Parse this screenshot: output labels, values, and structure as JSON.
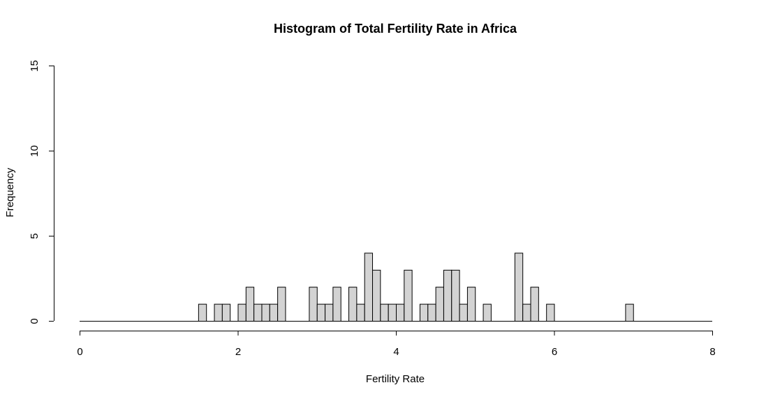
{
  "chart_data": {
    "type": "bar",
    "title": "Histogram of Total Fertility Rate in Africa",
    "xlabel": "Fertility Rate",
    "ylabel": "Frequency",
    "xlim": [
      0,
      8
    ],
    "ylim": [
      0,
      15
    ],
    "x_ticks": [
      "0",
      "2",
      "4",
      "6",
      "8"
    ],
    "y_ticks": [
      "0",
      "5",
      "10",
      "15"
    ],
    "bin_width": 0.1,
    "bar_color": "#d3d3d3",
    "grid": false,
    "bins": [
      {
        "start": 1.5,
        "count": 1
      },
      {
        "start": 1.7,
        "count": 1
      },
      {
        "start": 1.8,
        "count": 1
      },
      {
        "start": 2.0,
        "count": 1
      },
      {
        "start": 2.1,
        "count": 2
      },
      {
        "start": 2.2,
        "count": 1
      },
      {
        "start": 2.3,
        "count": 1
      },
      {
        "start": 2.4,
        "count": 1
      },
      {
        "start": 2.5,
        "count": 2
      },
      {
        "start": 2.9,
        "count": 2
      },
      {
        "start": 3.0,
        "count": 1
      },
      {
        "start": 3.1,
        "count": 1
      },
      {
        "start": 3.2,
        "count": 2
      },
      {
        "start": 3.4,
        "count": 2
      },
      {
        "start": 3.5,
        "count": 1
      },
      {
        "start": 3.6,
        "count": 4
      },
      {
        "start": 3.7,
        "count": 3
      },
      {
        "start": 3.8,
        "count": 1
      },
      {
        "start": 3.9,
        "count": 1
      },
      {
        "start": 4.0,
        "count": 1
      },
      {
        "start": 4.1,
        "count": 3
      },
      {
        "start": 4.3,
        "count": 1
      },
      {
        "start": 4.4,
        "count": 1
      },
      {
        "start": 4.5,
        "count": 2
      },
      {
        "start": 4.6,
        "count": 3
      },
      {
        "start": 4.7,
        "count": 3
      },
      {
        "start": 4.8,
        "count": 1
      },
      {
        "start": 4.9,
        "count": 2
      },
      {
        "start": 5.1,
        "count": 1
      },
      {
        "start": 5.5,
        "count": 4
      },
      {
        "start": 5.6,
        "count": 1
      },
      {
        "start": 5.7,
        "count": 2
      },
      {
        "start": 5.9,
        "count": 1
      },
      {
        "start": 6.9,
        "count": 1
      }
    ]
  }
}
